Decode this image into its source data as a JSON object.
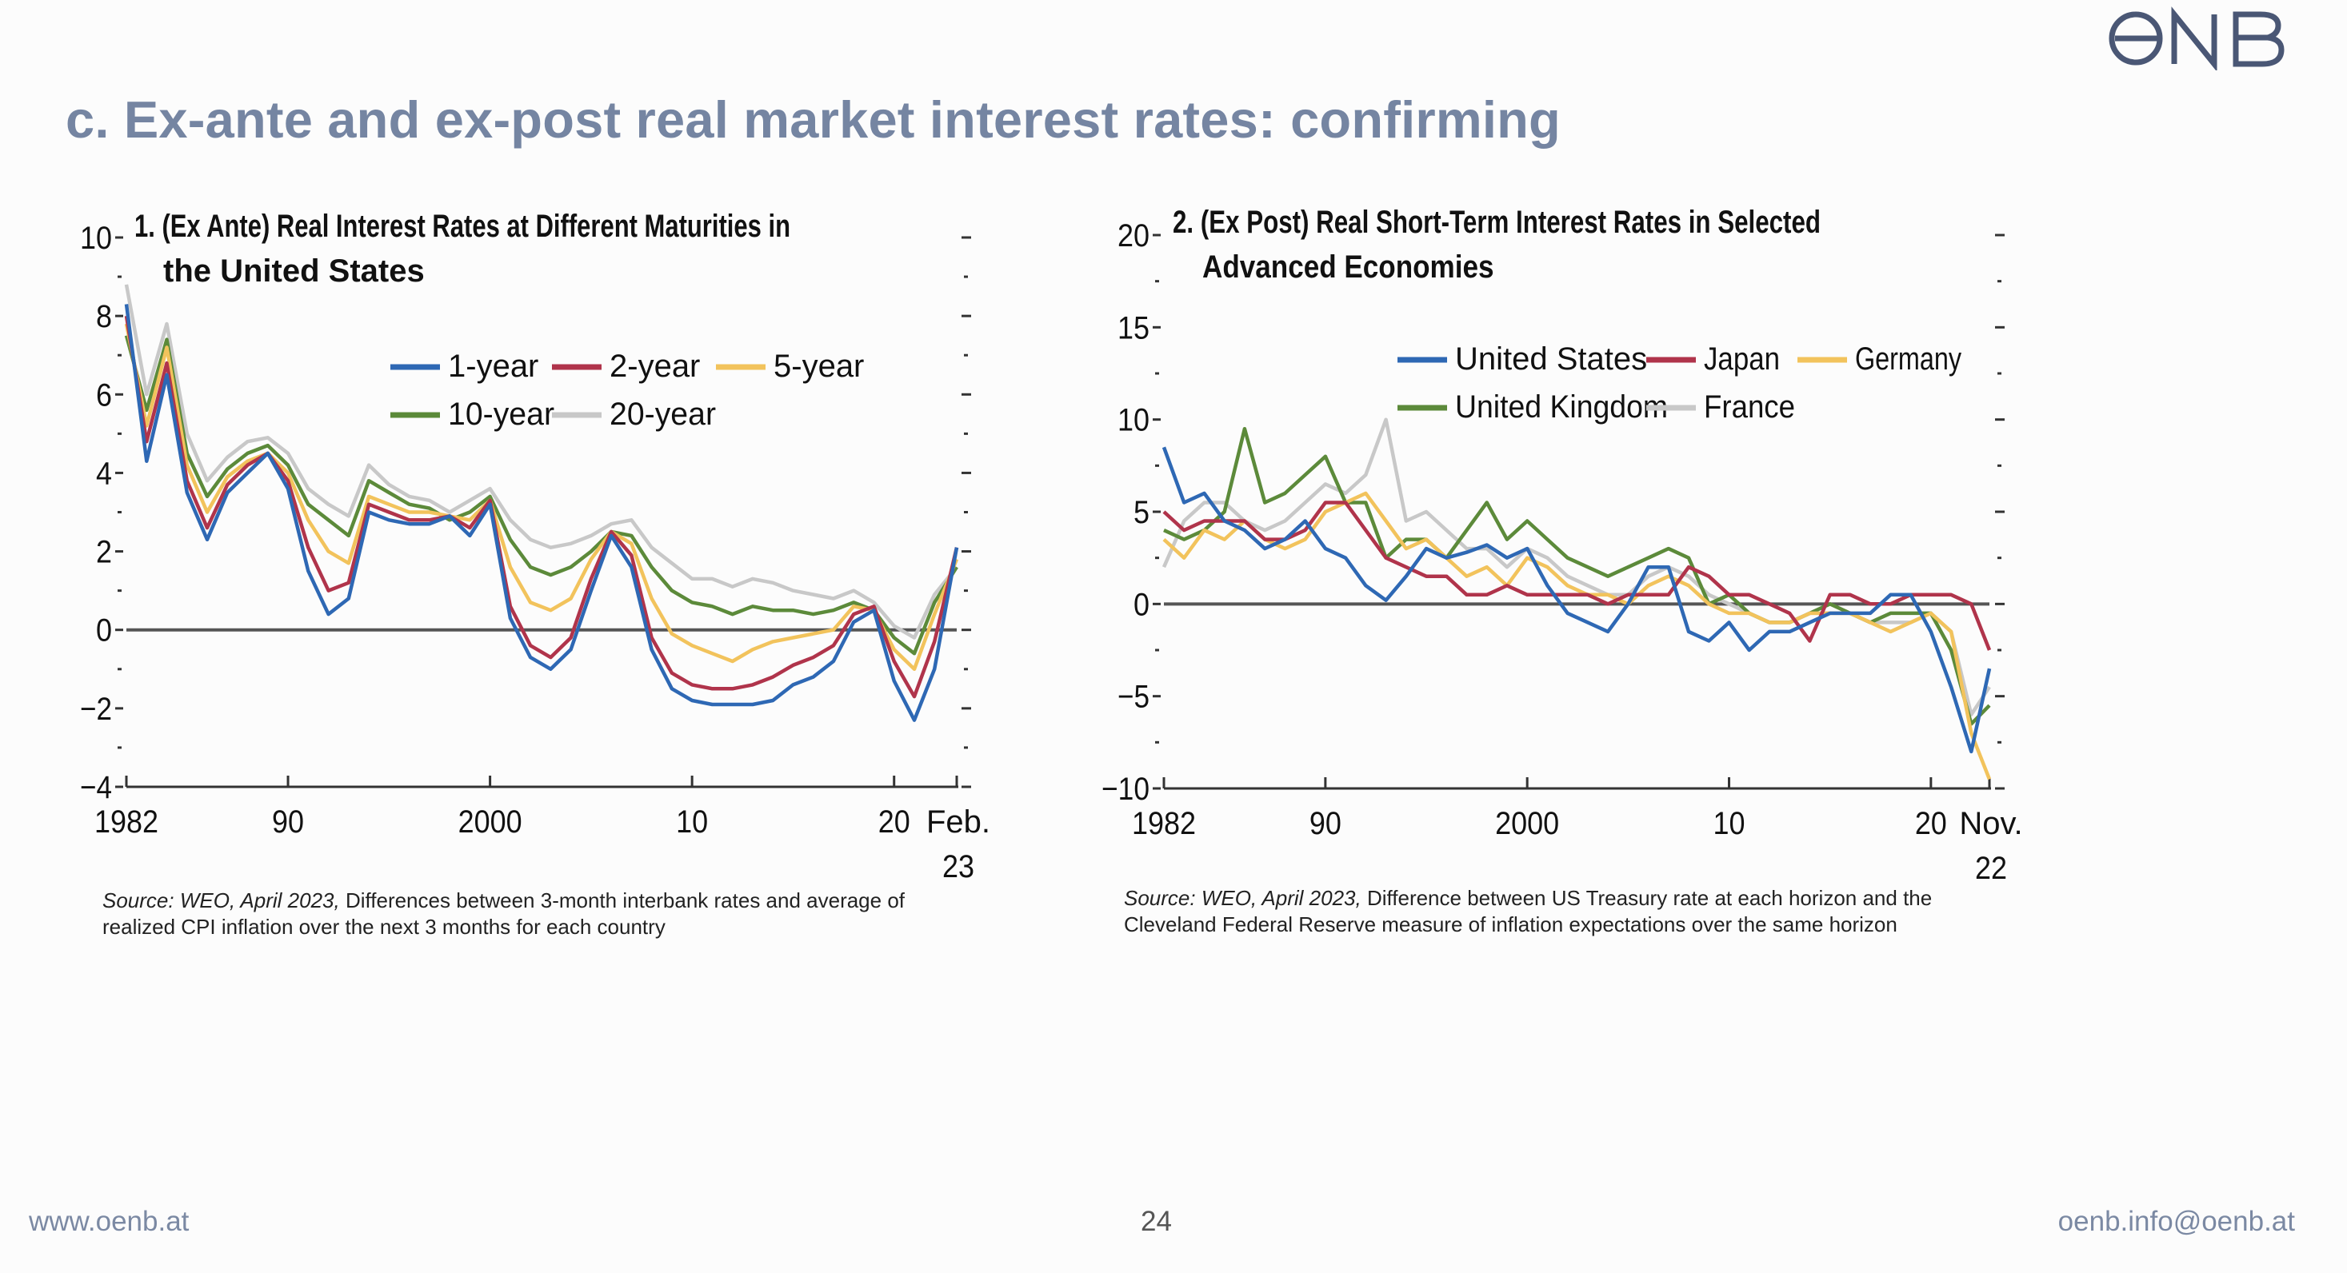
{
  "slide": {
    "title": "c. Ex-ante and ex-post real market interest rates: confirming",
    "logo_text": "OENB",
    "footer_left": "www.oenb.at",
    "page_number": "24",
    "footer_right": "oenb.info@oenb.at"
  },
  "sources": [
    {
      "label": "Source: WEO, April 2023,",
      "text": "Differences between 3-month interbank rates and average of realized CPI inflation over the next 3 months for each country"
    },
    {
      "label": "Source: WEO, April 2023,",
      "text": "Difference between US Treasury rate at each horizon and the Cleveland Federal Reserve measure of inflation expectations over the same horizon"
    }
  ],
  "colors": {
    "title": "#7585a2",
    "footer": "#7b89a3",
    "blue": "#2e68b4",
    "red": "#b0344b",
    "yellow": "#f2c35c",
    "green": "#5c8a3a",
    "grey": "#c8c8c8"
  },
  "chart_data": [
    {
      "type": "line",
      "title_lines": [
        "1. (Ex Ante) Real Interest Rates at Different Maturities in",
        "the United States"
      ],
      "ylim": [
        -4,
        10
      ],
      "yticks": [
        -4,
        -2,
        0,
        2,
        4,
        6,
        8,
        10
      ],
      "ytick_labels": [
        "−4",
        "−2",
        "0",
        "2",
        "4",
        "6",
        "8",
        "10"
      ],
      "xlim": [
        1982,
        2023.1
      ],
      "xticks": [
        1982,
        1990,
        2000,
        2010,
        2020
      ],
      "xtick_labels": [
        "1982",
        "90",
        "2000",
        "10",
        "20"
      ],
      "x_end_label": [
        "Feb.",
        "23"
      ],
      "zero_line": true,
      "x": [
        1982,
        1983,
        1984,
        1985,
        1986,
        1987,
        1988,
        1989,
        1990,
        1991,
        1992,
        1993,
        1994,
        1995,
        1996,
        1997,
        1998,
        1999,
        2000,
        2001,
        2002,
        2003,
        2004,
        2005,
        2006,
        2007,
        2008,
        2009,
        2010,
        2011,
        2012,
        2013,
        2014,
        2015,
        2016,
        2017,
        2018,
        2019,
        2020,
        2021,
        2022,
        2023.1
      ],
      "series": [
        {
          "name": "1-year",
          "color": "#2e68b4",
          "values": [
            8.3,
            4.3,
            6.5,
            3.5,
            2.3,
            3.5,
            4.0,
            4.5,
            3.6,
            1.5,
            0.4,
            0.8,
            3.0,
            2.8,
            2.7,
            2.7,
            2.9,
            2.4,
            3.2,
            0.3,
            -0.7,
            -1.0,
            -0.5,
            1.0,
            2.4,
            1.6,
            -0.5,
            -1.5,
            -1.8,
            -1.9,
            -1.9,
            -1.9,
            -1.8,
            -1.4,
            -1.2,
            -0.8,
            0.2,
            0.5,
            -1.3,
            -2.3,
            -1.0,
            2.1
          ]
        },
        {
          "name": "2-year",
          "color": "#b0344b",
          "values": [
            8.0,
            4.8,
            6.8,
            3.8,
            2.6,
            3.7,
            4.2,
            4.5,
            3.8,
            2.1,
            1.0,
            1.2,
            3.2,
            3.0,
            2.8,
            2.8,
            2.9,
            2.6,
            3.3,
            0.6,
            -0.4,
            -0.7,
            -0.2,
            1.3,
            2.5,
            1.9,
            -0.2,
            -1.1,
            -1.4,
            -1.5,
            -1.5,
            -1.4,
            -1.2,
            -0.9,
            -0.7,
            -0.4,
            0.4,
            0.6,
            -0.8,
            -1.7,
            -0.3,
            2.1
          ]
        },
        {
          "name": "5-year",
          "color": "#f2c35c",
          "values": [
            7.8,
            5.2,
            7.2,
            4.2,
            3.0,
            3.9,
            4.3,
            4.5,
            4.0,
            2.8,
            2.0,
            1.7,
            3.4,
            3.2,
            3.0,
            3.0,
            2.9,
            2.8,
            3.3,
            1.6,
            0.7,
            0.5,
            0.8,
            1.8,
            2.5,
            2.2,
            0.8,
            -0.1,
            -0.4,
            -0.6,
            -0.8,
            -0.5,
            -0.3,
            -0.2,
            -0.1,
            0.0,
            0.6,
            0.5,
            -0.5,
            -1.0,
            0.4,
            1.8
          ]
        },
        {
          "name": "10-year",
          "color": "#5c8a3a",
          "values": [
            7.5,
            5.6,
            7.4,
            4.5,
            3.4,
            4.1,
            4.5,
            4.7,
            4.2,
            3.2,
            2.8,
            2.4,
            3.8,
            3.5,
            3.2,
            3.1,
            2.8,
            3.0,
            3.4,
            2.3,
            1.6,
            1.4,
            1.6,
            2.0,
            2.5,
            2.4,
            1.6,
            1.0,
            0.7,
            0.6,
            0.4,
            0.6,
            0.5,
            0.5,
            0.4,
            0.5,
            0.7,
            0.5,
            -0.2,
            -0.6,
            0.7,
            1.6
          ]
        },
        {
          "name": "20-year",
          "color": "#c8c8c8",
          "values": [
            8.8,
            6.0,
            7.8,
            5.0,
            3.8,
            4.4,
            4.8,
            4.9,
            4.5,
            3.6,
            3.2,
            2.9,
            4.2,
            3.7,
            3.4,
            3.3,
            3.0,
            3.3,
            3.6,
            2.8,
            2.3,
            2.1,
            2.2,
            2.4,
            2.7,
            2.8,
            2.1,
            1.7,
            1.3,
            1.3,
            1.1,
            1.3,
            1.2,
            1.0,
            0.9,
            0.8,
            1.0,
            0.7,
            0.1,
            -0.2,
            0.9,
            1.6
          ]
        }
      ],
      "legend": {
        "placement": "top-center",
        "rows": [
          [
            "1-year",
            "2-year",
            "5-year"
          ],
          [
            "10-year",
            "20-year"
          ]
        ]
      }
    },
    {
      "type": "line",
      "title_lines": [
        "2. (Ex Post) Real Short-Term Interest Rates in Selected",
        "Advanced Economies"
      ],
      "ylim": [
        -10,
        20
      ],
      "yticks": [
        -10,
        -5,
        0,
        5,
        10,
        15,
        20
      ],
      "ytick_labels": [
        "−10",
        "−5",
        "0",
        "5",
        "10",
        "15",
        "20"
      ],
      "xlim": [
        1982,
        2022.9
      ],
      "xticks": [
        1982,
        1990,
        2000,
        2010,
        2020
      ],
      "xtick_labels": [
        "1982",
        "90",
        "2000",
        "10",
        "20"
      ],
      "x_end_label": [
        "Nov.",
        "22"
      ],
      "zero_line": true,
      "x": [
        1982,
        1983,
        1984,
        1985,
        1986,
        1987,
        1988,
        1989,
        1990,
        1991,
        1992,
        1993,
        1994,
        1995,
        1996,
        1997,
        1998,
        1999,
        2000,
        2001,
        2002,
        2003,
        2004,
        2005,
        2006,
        2007,
        2008,
        2009,
        2010,
        2011,
        2012,
        2013,
        2014,
        2015,
        2016,
        2017,
        2018,
        2019,
        2020,
        2021,
        2022,
        2022.9
      ],
      "series": [
        {
          "name": "United States",
          "color": "#2e68b4",
          "values": [
            8.5,
            5.5,
            6.0,
            4.5,
            4.0,
            3.0,
            3.5,
            4.5,
            3.0,
            2.5,
            1.0,
            0.2,
            1.5,
            3.0,
            2.5,
            2.8,
            3.2,
            2.5,
            3.0,
            1.0,
            -0.5,
            -1.0,
            -1.5,
            0.0,
            2.0,
            2.0,
            -1.5,
            -2.0,
            -1.0,
            -2.5,
            -1.5,
            -1.5,
            -1.0,
            -0.5,
            -0.5,
            -0.5,
            0.5,
            0.5,
            -1.5,
            -4.5,
            -8.0,
            -3.5
          ]
        },
        {
          "name": "Japan",
          "color": "#b0344b",
          "values": [
            5.0,
            4.0,
            4.5,
            4.5,
            4.5,
            3.5,
            3.5,
            4.0,
            5.5,
            5.5,
            4.0,
            2.5,
            2.0,
            1.5,
            1.5,
            0.5,
            0.5,
            1.0,
            0.5,
            0.5,
            0.5,
            0.5,
            0.0,
            0.5,
            0.5,
            0.5,
            2.0,
            1.5,
            0.5,
            0.5,
            0.0,
            -0.5,
            -2.0,
            0.5,
            0.5,
            0.0,
            0.0,
            0.5,
            0.5,
            0.5,
            0.0,
            -2.5
          ]
        },
        {
          "name": "Germany",
          "color": "#f2c35c",
          "values": [
            3.5,
            2.5,
            4.0,
            3.5,
            4.5,
            3.5,
            3.0,
            3.5,
            5.0,
            5.5,
            6.0,
            4.5,
            3.0,
            3.5,
            2.5,
            1.5,
            2.0,
            1.0,
            2.5,
            2.0,
            1.0,
            0.5,
            0.5,
            0.0,
            1.0,
            1.5,
            1.0,
            0.0,
            -0.5,
            -0.5,
            -1.0,
            -1.0,
            -0.5,
            -0.5,
            -0.5,
            -1.0,
            -1.5,
            -1.0,
            -0.5,
            -1.5,
            -7.0,
            -9.5
          ]
        },
        {
          "name": "United Kingdom",
          "color": "#5c8a3a",
          "values": [
            4.0,
            3.5,
            4.0,
            5.0,
            9.5,
            5.5,
            6.0,
            7.0,
            8.0,
            5.5,
            5.5,
            2.5,
            3.5,
            3.5,
            2.5,
            4.0,
            5.5,
            3.5,
            4.5,
            3.5,
            2.5,
            2.0,
            1.5,
            2.0,
            2.5,
            3.0,
            2.5,
            0.0,
            0.5,
            -0.5,
            -1.0,
            -1.0,
            -0.5,
            0.0,
            -0.5,
            -1.0,
            -0.5,
            -0.5,
            -0.5,
            -2.5,
            -6.5,
            -5.5
          ]
        },
        {
          "name": "France",
          "color": "#c8c8c8",
          "values": [
            2.0,
            4.5,
            5.5,
            5.5,
            4.5,
            4.0,
            4.5,
            5.5,
            6.5,
            6.0,
            7.0,
            10.0,
            4.5,
            5.0,
            4.0,
            3.0,
            3.0,
            2.0,
            3.0,
            2.5,
            1.5,
            1.0,
            0.5,
            0.5,
            1.5,
            2.0,
            1.5,
            0.5,
            0.0,
            -0.5,
            -1.0,
            -1.0,
            -0.5,
            -0.5,
            -0.5,
            -1.0,
            -1.0,
            -1.0,
            -0.5,
            -1.5,
            -6.0,
            -4.5
          ]
        }
      ],
      "legend": {
        "placement": "top-center",
        "rows": [
          [
            "United States",
            "Japan",
            "Germany"
          ],
          [
            "United Kingdom",
            "France"
          ]
        ]
      }
    }
  ]
}
